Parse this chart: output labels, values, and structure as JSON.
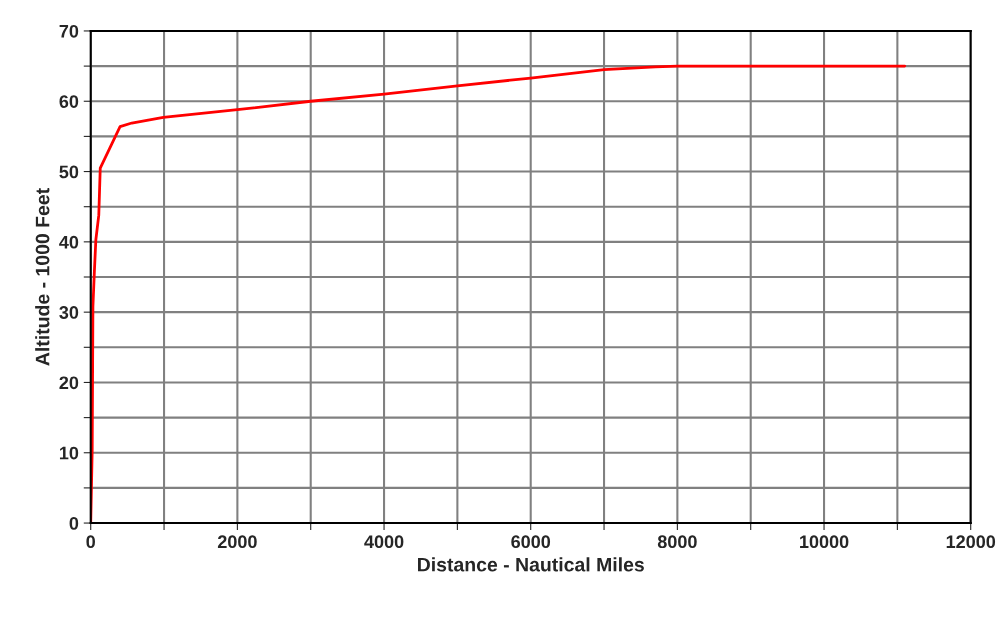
{
  "chart_data": {
    "type": "line",
    "xlabel": "Distance - Nautical Miles",
    "ylabel": "Altitude - 1000 Feet",
    "x": [
      0,
      20,
      30,
      50,
      70,
      110,
      130,
      400,
      560,
      990,
      2000,
      3000,
      4000,
      5000,
      6000,
      7000,
      7700,
      8000,
      11100
    ],
    "series": [
      {
        "color": "#ff0000",
        "values": [
          0,
          10.3,
          30.8,
          35.8,
          40.3,
          43.8,
          50.5,
          56.4,
          56.9,
          57.7,
          58.8,
          60,
          61,
          62.2,
          63.3,
          64.5,
          64.9,
          65,
          65
        ]
      }
    ],
    "xlim": [
      0,
      12000
    ],
    "ylim": [
      0,
      70
    ],
    "xticks": [
      0,
      {
        "value": 1000,
        "label": null
      },
      2000,
      {
        "value": 3000,
        "label": null
      },
      4000,
      {
        "value": 5000,
        "label": null
      },
      6000,
      {
        "value": 7000,
        "label": null
      },
      8000,
      {
        "value": 9000,
        "label": null
      },
      10000,
      {
        "value": 11000,
        "label": null
      },
      12000
    ],
    "yticks": [
      0,
      {
        "value": 5,
        "label": null
      },
      10,
      {
        "value": 15,
        "label": null
      },
      20,
      {
        "value": 25,
        "label": null
      },
      30,
      {
        "value": 35,
        "label": null
      },
      40,
      {
        "value": 45,
        "label": null
      },
      50,
      {
        "value": 55,
        "label": null
      },
      60,
      {
        "value": 65,
        "label": null
      },
      70
    ],
    "grid": true,
    "legend": false,
    "marker": "none",
    "line_style": "solid"
  }
}
